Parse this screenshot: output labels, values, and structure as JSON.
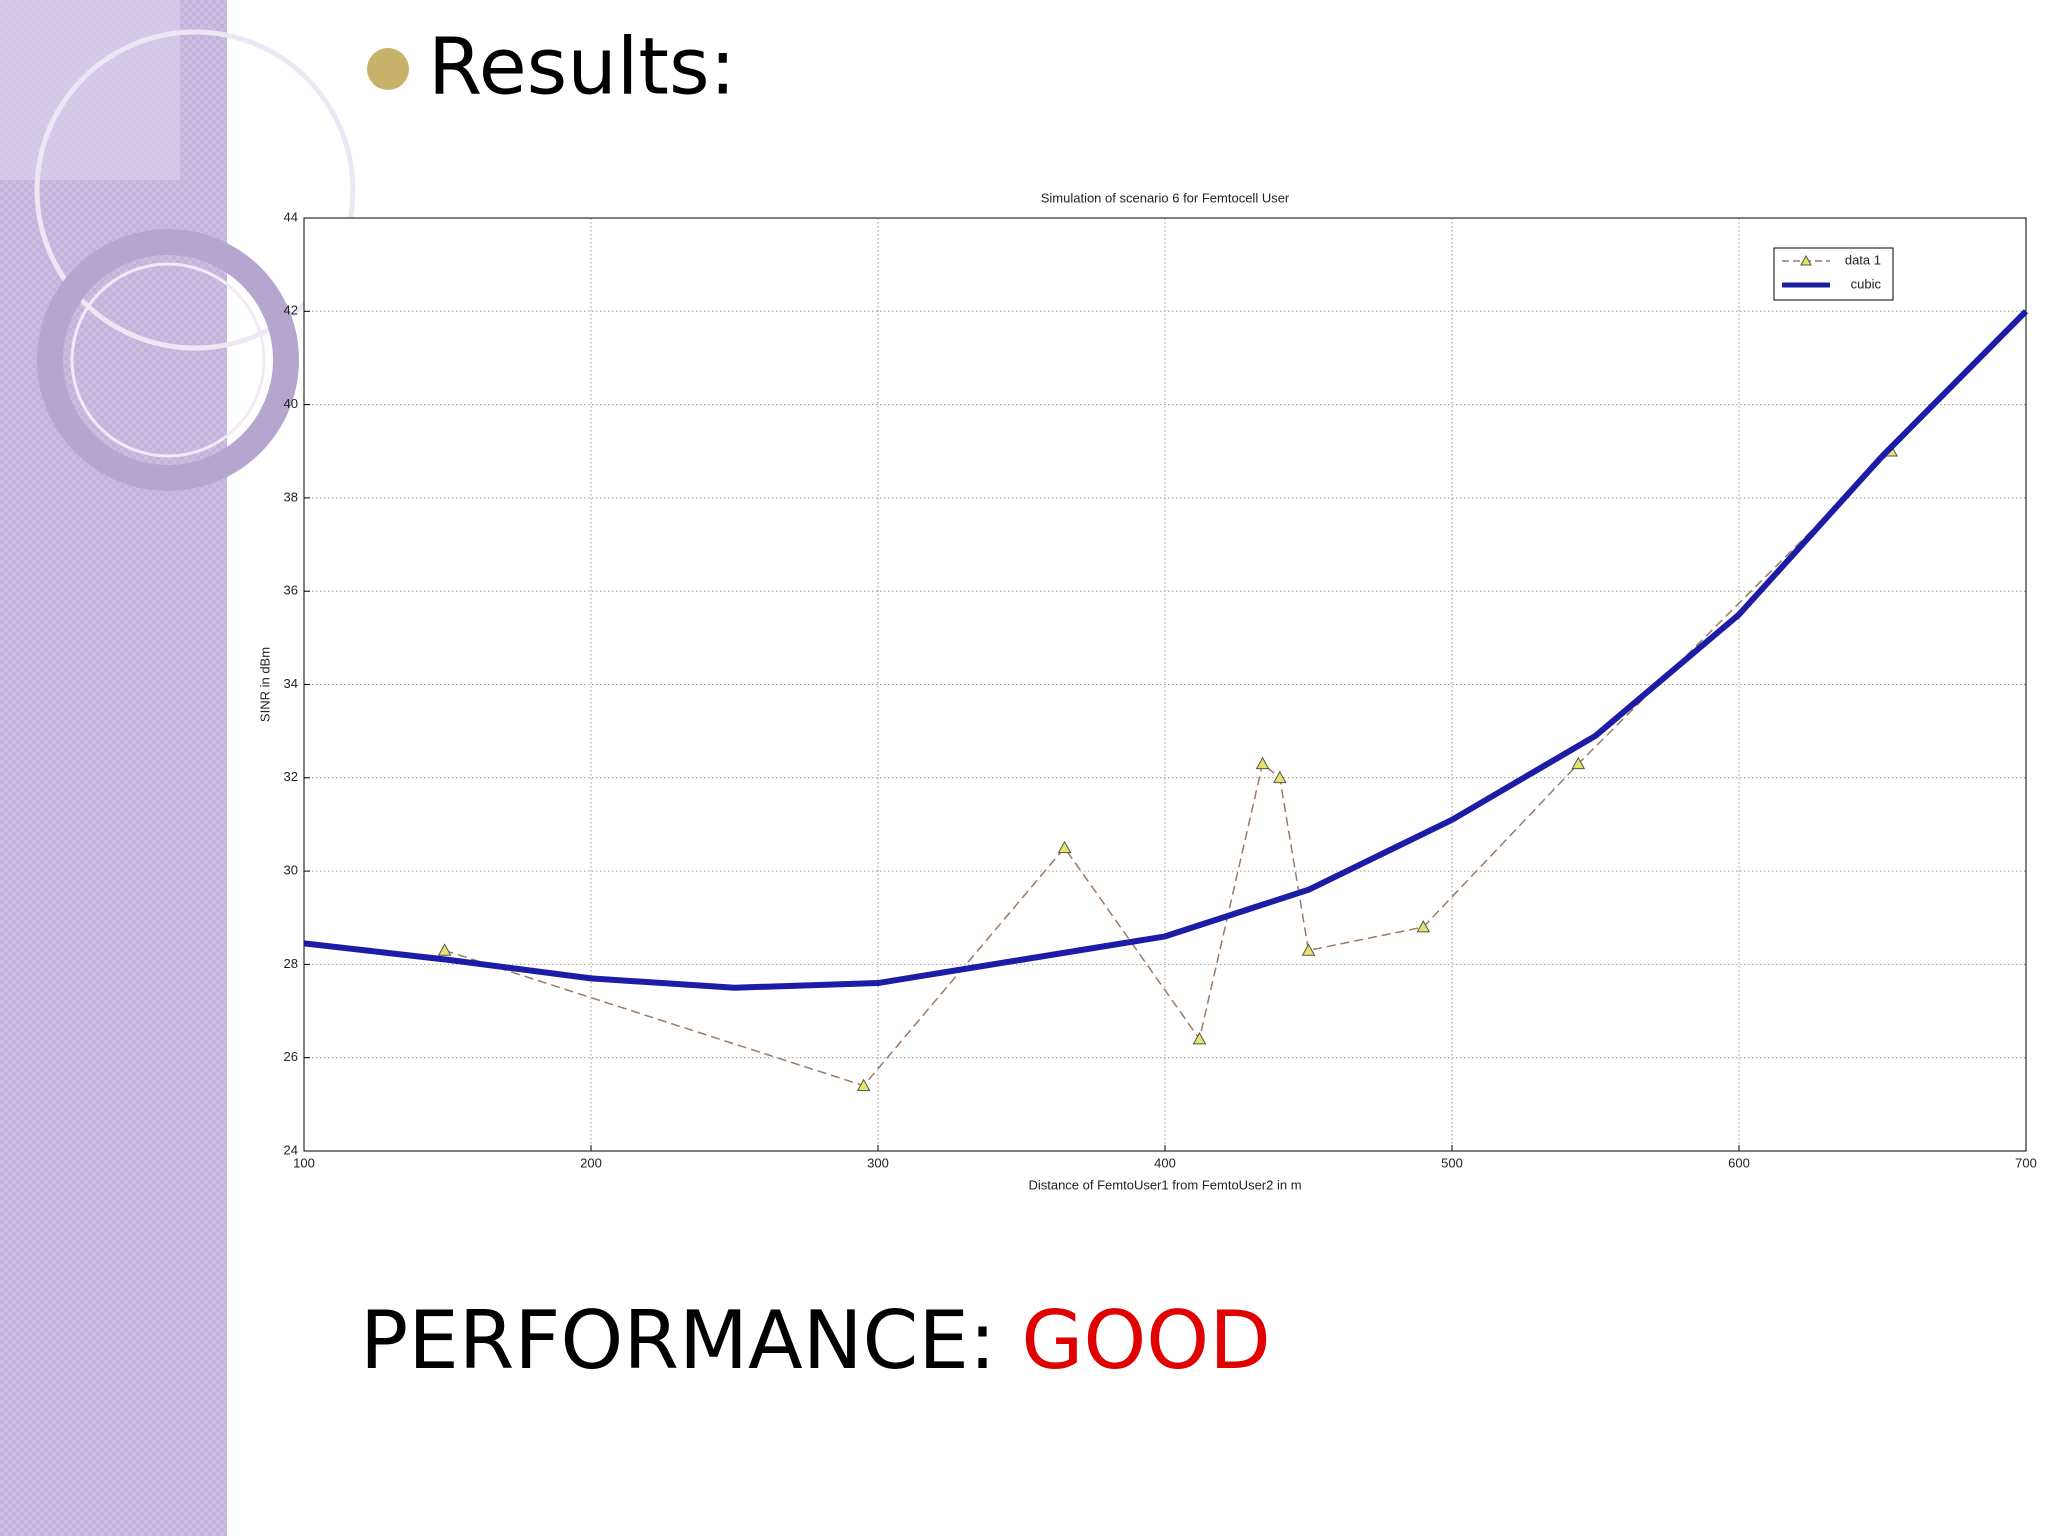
{
  "heading": "Results:",
  "performance": {
    "label": "PERFORMANCE:",
    "verdict": "GOOD"
  },
  "chart_data": {
    "type": "line",
    "title": "Simulation of scenario 6 for Femtocell User",
    "x_label": "Distance of FemtoUser1 from FemtoUser2 in m",
    "y_label": "SINR in dBm",
    "xlim": [
      100,
      700
    ],
    "xticks": [
      100,
      200,
      300,
      400,
      500,
      600,
      700
    ],
    "ylim": [
      24,
      44
    ],
    "yticks": [
      24,
      26,
      28,
      30,
      32,
      34,
      36,
      38,
      40,
      42,
      44
    ],
    "grid": true,
    "legend": "upper right",
    "series": [
      {
        "name": "data 1",
        "color": "#9a7a62",
        "marker_color": "#e6e26a",
        "x": [
          149,
          295,
          365,
          412,
          434,
          440,
          450,
          490,
          544,
          653
        ],
        "values": [
          28.3,
          25.4,
          30.5,
          26.4,
          32.3,
          32.0,
          28.3,
          28.8,
          32.3,
          39.0
        ]
      },
      {
        "name": "cubic",
        "color": "#1c1ca6",
        "x": [
          100,
          150,
          200,
          250,
          300,
          350,
          400,
          450,
          500,
          550,
          600,
          650,
          700
        ],
        "values": [
          28.45,
          28.1,
          27.7,
          27.5,
          27.6,
          28.1,
          28.6,
          29.6,
          31.1,
          32.9,
          35.5,
          38.9,
          42.0
        ]
      }
    ]
  }
}
